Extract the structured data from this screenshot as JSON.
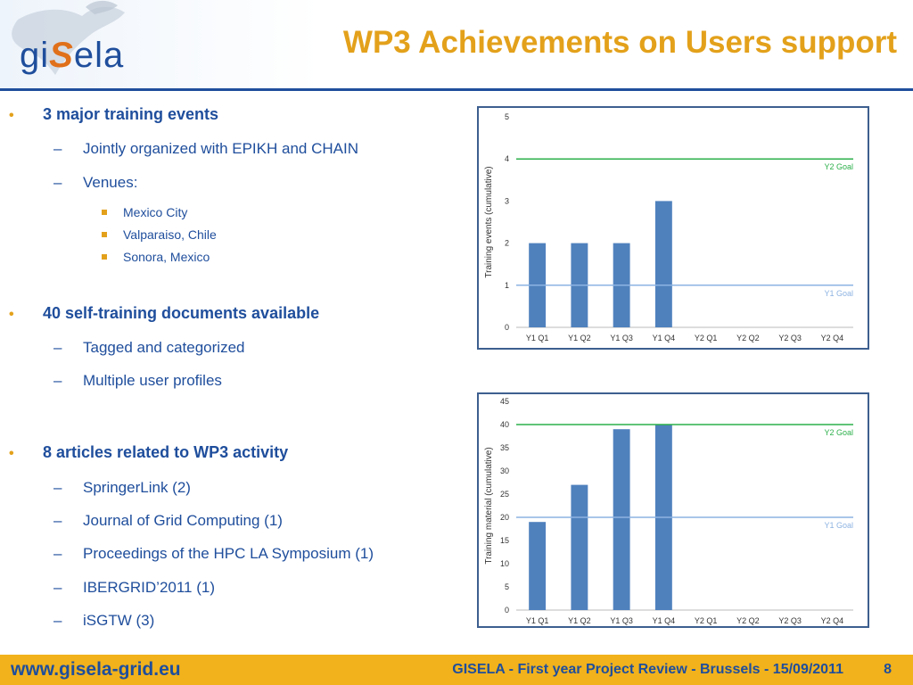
{
  "header": {
    "title": "WP3 Achievements on Users support",
    "logo_text_before": "gi",
    "logo_text_s": "S",
    "logo_text_after": "ela"
  },
  "bullets": [
    {
      "text": "3 major training events",
      "subs": [
        {
          "text": "Jointly organized with EPIKH and CHAIN"
        },
        {
          "text": "Venues:",
          "subs": [
            "Mexico City",
            "Valparaiso, Chile",
            "Sonora, Mexico"
          ]
        }
      ]
    },
    {
      "text": "40 self-training documents available",
      "subs": [
        {
          "text": "Tagged and categorized"
        },
        {
          "text": "Multiple user profiles"
        }
      ]
    },
    {
      "text": "8 articles related to WP3 activity",
      "subs": [
        {
          "text": "SpringerLink (2)"
        },
        {
          "text": "Journal of Grid Computing (1)"
        },
        {
          "text": "Proceedings of the HPC LA Symposium (1)"
        },
        {
          "text": "IBERGRID’2011 (1)"
        },
        {
          "text": "iSGTW (3)"
        }
      ]
    }
  ],
  "bullet_glyph": "•",
  "dash_glyph": "–",
  "colors": {
    "accent": "#e3a11b",
    "text": "#1f4e9c",
    "bar": "#4f81bd",
    "goal_y2": "#2db04b",
    "goal_y1": "#8db3e2"
  },
  "chart_data": [
    {
      "type": "bar",
      "categories": [
        "Y1 Q1",
        "Y1 Q2",
        "Y1 Q3",
        "Y1 Q4",
        "Y2 Q1",
        "Y2 Q2",
        "Y2 Q3",
        "Y2 Q4"
      ],
      "values": [
        2,
        2,
        2,
        3,
        null,
        null,
        null,
        null
      ],
      "ylabel": "Training events  (cumulative)",
      "ylim": [
        0,
        5
      ],
      "yticks": [
        0,
        1,
        2,
        3,
        4,
        5
      ],
      "goals": [
        {
          "name": "Y2 Goal",
          "value": 4
        },
        {
          "name": "Y1 Goal",
          "value": 1
        }
      ],
      "grid": false
    },
    {
      "type": "bar",
      "categories": [
        "Y1 Q1",
        "Y1 Q2",
        "Y1 Q3",
        "Y1 Q4",
        "Y2 Q1",
        "Y2 Q2",
        "Y2 Q3",
        "Y2 Q4"
      ],
      "values": [
        19,
        27,
        39,
        40,
        null,
        null,
        null,
        null
      ],
      "ylabel": "Training material (cumulative)",
      "ylim": [
        0,
        45
      ],
      "yticks": [
        0,
        5,
        10,
        15,
        20,
        25,
        30,
        35,
        40,
        45
      ],
      "goals": [
        {
          "name": "Y2 Goal",
          "value": 40
        },
        {
          "name": "Y1 Goal",
          "value": 20
        }
      ],
      "grid": false
    }
  ],
  "footer": {
    "url": "www.gisela-grid.eu",
    "text": "GISELA - First year Project Review - Brussels - 15/09/2011",
    "page": "8"
  }
}
